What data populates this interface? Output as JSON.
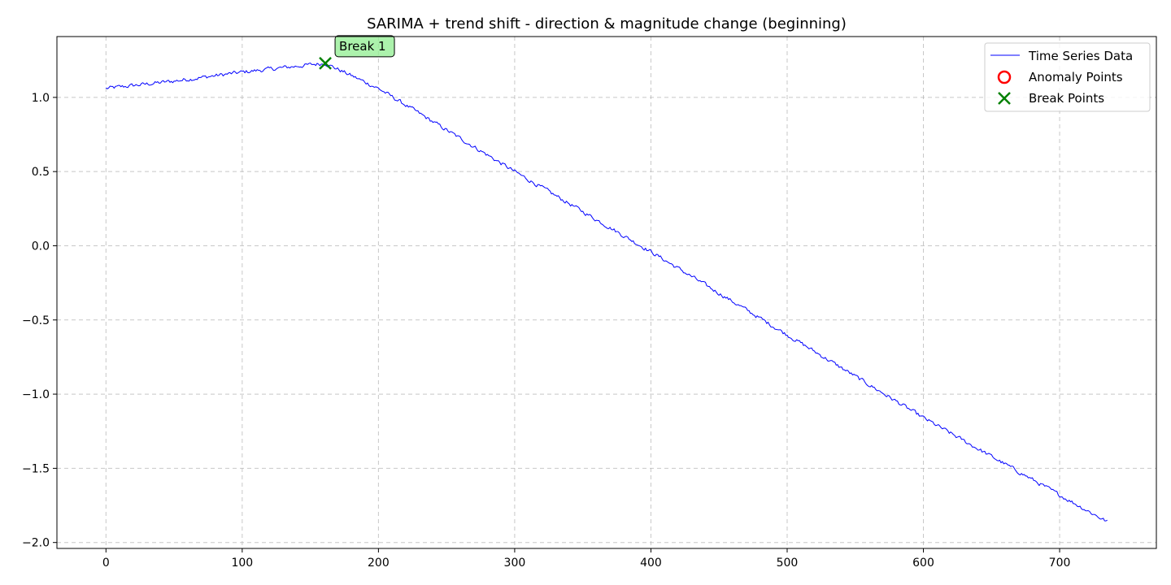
{
  "chart_data": {
    "type": "line",
    "title": "SARIMA + trend shift - direction & magnitude change (beginning)",
    "xlabel": "",
    "ylabel": "",
    "xlim": [
      -36,
      771
    ],
    "ylim": [
      -2.04,
      1.41
    ],
    "x_ticks": [
      0,
      100,
      200,
      300,
      400,
      500,
      600,
      700
    ],
    "x_tick_labels": [
      "0",
      "100",
      "200",
      "300",
      "400",
      "500",
      "600",
      "700"
    ],
    "y_ticks": [
      -2.0,
      -1.5,
      -1.0,
      -0.5,
      0.0,
      0.5,
      1.0
    ],
    "y_tick_labels": [
      "−2.0",
      "−1.5",
      "−1.0",
      "−0.5",
      "0.0",
      "0.5",
      "1.0"
    ],
    "grid": true,
    "legend_position": "top-right",
    "series": [
      {
        "name": "Time Series Data",
        "color": "#0000ff",
        "n_points": 736,
        "trend_knots_x": [
          0,
          50,
          100,
          130,
          150,
          161,
          200,
          300,
          400,
          500,
          600,
          700,
          735
        ],
        "trend_knots_y": [
          1.06,
          1.11,
          1.17,
          1.2,
          1.22,
          1.23,
          1.06,
          0.5,
          -0.04,
          -0.6,
          -1.16,
          -1.68,
          -1.86
        ],
        "noise_amplitude": 0.012
      }
    ],
    "anomaly_points": {
      "name": "Anomaly Points",
      "color": "#ff0000",
      "x": [],
      "y": []
    },
    "break_points": {
      "name": "Break Points",
      "color": "#008000",
      "x": [
        161
      ],
      "y": [
        1.23
      ],
      "labels": [
        "Break 1"
      ]
    }
  }
}
